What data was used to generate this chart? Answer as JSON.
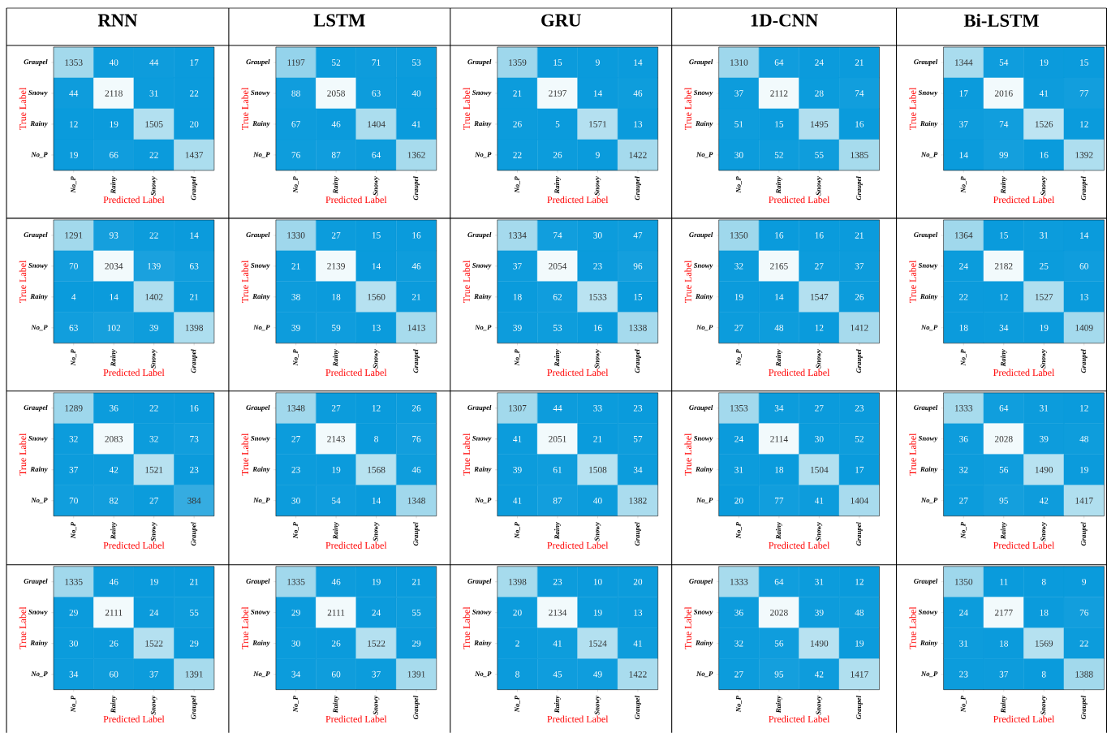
{
  "chart_data": [
    {
      "type": "heatmap",
      "title": "RNN",
      "xlabel": "Predicted Label",
      "ylabel": "True Label",
      "categories": [
        "No_P",
        "Rainy",
        "Snowy",
        "Graupel"
      ],
      "y_categories": [
        "Graupel",
        "Snowy",
        "Rainy",
        "No_P"
      ],
      "data_labels": true,
      "cells": [
        [
          1353,
          40,
          44,
          17
        ],
        [
          44,
          2118,
          31,
          22
        ],
        [
          12,
          19,
          1505,
          20
        ],
        [
          19,
          66,
          22,
          1437
        ]
      ]
    },
    {
      "type": "heatmap",
      "title": "LSTM",
      "xlabel": "Predicted Label",
      "ylabel": "True Label",
      "categories": [
        "No_P",
        "Rainy",
        "Snowy",
        "Graupel"
      ],
      "y_categories": [
        "Graupel",
        "Snowy",
        "Rainy",
        "No_P"
      ],
      "data_labels": true,
      "cells": [
        [
          1197,
          52,
          71,
          53
        ],
        [
          88,
          2058,
          63,
          40
        ],
        [
          67,
          46,
          1404,
          41
        ],
        [
          76,
          87,
          64,
          1362
        ]
      ]
    },
    {
      "type": "heatmap",
      "title": "GRU",
      "xlabel": "Predicted Label",
      "ylabel": "True Label",
      "categories": [
        "No_P",
        "Rainy",
        "Snowy",
        "Graupel"
      ],
      "y_categories": [
        "Graupel",
        "Snowy",
        "Rainy",
        "No_P"
      ],
      "data_labels": true,
      "cells": [
        [
          1359,
          15,
          9,
          14
        ],
        [
          21,
          2197,
          14,
          46
        ],
        [
          26,
          5,
          1571,
          13
        ],
        [
          22,
          26,
          9,
          1422
        ]
      ]
    },
    {
      "type": "heatmap",
      "title": "1D-CNN",
      "xlabel": "Predicted Label",
      "ylabel": "True Label",
      "categories": [
        "No_P",
        "Rainy",
        "Snowy",
        "Graupel"
      ],
      "y_categories": [
        "Graupel",
        "Snowy",
        "Rainy",
        "No_P"
      ],
      "data_labels": true,
      "cells": [
        [
          1310,
          64,
          24,
          21
        ],
        [
          37,
          2112,
          28,
          74
        ],
        [
          51,
          15,
          1495,
          16
        ],
        [
          30,
          52,
          55,
          1385
        ]
      ]
    },
    {
      "type": "heatmap",
      "title": "Bi-LSTM",
      "xlabel": "Predicted Label",
      "ylabel": "True Label",
      "categories": [
        "No_P",
        "Rainy",
        "Snowy",
        "Graupel"
      ],
      "y_categories": [
        "Graupel",
        "Snowy",
        "Rainy",
        "No_P"
      ],
      "data_labels": true,
      "cells": [
        [
          1344,
          54,
          19,
          15
        ],
        [
          17,
          2016,
          41,
          77
        ],
        [
          37,
          74,
          1526,
          12
        ],
        [
          14,
          99,
          16,
          1392
        ]
      ]
    },
    {
      "type": "heatmap",
      "xlabel": "Predicted Label",
      "ylabel": "True Label",
      "categories": [
        "No_P",
        "Rainy",
        "Snowy",
        "Graupel"
      ],
      "y_categories": [
        "Graupel",
        "Snowy",
        "Rainy",
        "No_P"
      ],
      "data_labels": true,
      "cells": [
        [
          1291,
          93,
          22,
          14
        ],
        [
          70,
          2034,
          139,
          63
        ],
        [
          4,
          14,
          1402,
          21
        ],
        [
          63,
          102,
          39,
          1398
        ]
      ]
    },
    {
      "type": "heatmap",
      "xlabel": "Predicted Label",
      "ylabel": "True Label",
      "categories": [
        "No_P",
        "Rainy",
        "Snowy",
        "Graupel"
      ],
      "y_categories": [
        "Graupel",
        "Snowy",
        "Rainy",
        "No_P"
      ],
      "data_labels": true,
      "cells": [
        [
          1330,
          27,
          15,
          16
        ],
        [
          21,
          2139,
          14,
          46
        ],
        [
          38,
          18,
          1560,
          21
        ],
        [
          39,
          59,
          13,
          1413
        ]
      ]
    },
    {
      "type": "heatmap",
      "xlabel": "Predicted Label",
      "ylabel": "True Label",
      "categories": [
        "No_P",
        "Rainy",
        "Snowy",
        "Graupel"
      ],
      "y_categories": [
        "Graupel",
        "Snowy",
        "Rainy",
        "No_P"
      ],
      "data_labels": true,
      "cells": [
        [
          1334,
          74,
          30,
          47
        ],
        [
          37,
          2054,
          23,
          96
        ],
        [
          18,
          62,
          1533,
          15
        ],
        [
          39,
          53,
          16,
          1338
        ]
      ]
    },
    {
      "type": "heatmap",
      "xlabel": "Predicted Label",
      "ylabel": "True Label",
      "categories": [
        "No_P",
        "Rainy",
        "Snowy",
        "Graupel"
      ],
      "y_categories": [
        "Graupel",
        "Snowy",
        "Rainy",
        "No_P"
      ],
      "data_labels": true,
      "cells": [
        [
          1350,
          16,
          16,
          21
        ],
        [
          32,
          2165,
          27,
          37
        ],
        [
          19,
          14,
          1547,
          26
        ],
        [
          27,
          48,
          12,
          1412
        ]
      ]
    },
    {
      "type": "heatmap",
      "xlabel": "Predicted Label",
      "ylabel": "True Label",
      "categories": [
        "No_P",
        "Rainy",
        "Snowy",
        "Graupel"
      ],
      "y_categories": [
        "Graupel",
        "Snowy",
        "Rainy",
        "No_P"
      ],
      "data_labels": true,
      "cells": [
        [
          1364,
          15,
          31,
          14
        ],
        [
          24,
          2182,
          25,
          60
        ],
        [
          22,
          12,
          1527,
          13
        ],
        [
          18,
          34,
          19,
          1409
        ]
      ]
    },
    {
      "type": "heatmap",
      "xlabel": "Predicted Label",
      "ylabel": "True Label",
      "categories": [
        "No_P",
        "Rainy",
        "Snowy",
        "Graupel"
      ],
      "y_categories": [
        "Graupel",
        "Snowy",
        "Rainy",
        "No_P"
      ],
      "data_labels": true,
      "cells": [
        [
          1289,
          36,
          22,
          16
        ],
        [
          32,
          2083,
          32,
          73
        ],
        [
          37,
          42,
          1521,
          23
        ],
        [
          70,
          82,
          27,
          384
        ]
      ]
    },
    {
      "type": "heatmap",
      "xlabel": "Predicted Label",
      "ylabel": "True Label",
      "categories": [
        "No_P",
        "Rainy",
        "Snowy",
        "Graupel"
      ],
      "y_categories": [
        "Graupel",
        "Snowy",
        "Rainy",
        "No_P"
      ],
      "data_labels": true,
      "cells": [
        [
          1348,
          27,
          12,
          26
        ],
        [
          27,
          2143,
          8,
          76
        ],
        [
          23,
          19,
          1568,
          46
        ],
        [
          30,
          54,
          14,
          1348
        ]
      ]
    },
    {
      "type": "heatmap",
      "xlabel": "Predicted Label",
      "ylabel": "True Label",
      "categories": [
        "No_P",
        "Rainy",
        "Snowy",
        "Graupel"
      ],
      "y_categories": [
        "Graupel",
        "Snowy",
        "Rainy",
        "No_P"
      ],
      "data_labels": true,
      "cells": [
        [
          1307,
          44,
          33,
          23
        ],
        [
          41,
          2051,
          21,
          57
        ],
        [
          39,
          61,
          1508,
          34
        ],
        [
          41,
          87,
          40,
          1382
        ]
      ]
    },
    {
      "type": "heatmap",
      "xlabel": "Predicted Label",
      "ylabel": "True Label",
      "categories": [
        "No_P",
        "Rainy",
        "Snowy",
        "Graupel"
      ],
      "y_categories": [
        "Graupel",
        "Snowy",
        "Rainy",
        "No_P"
      ],
      "data_labels": true,
      "cells": [
        [
          1353,
          34,
          27,
          23
        ],
        [
          24,
          2114,
          30,
          52
        ],
        [
          31,
          18,
          1504,
          17
        ],
        [
          20,
          77,
          41,
          1404
        ]
      ]
    },
    {
      "type": "heatmap",
      "xlabel": "Predicted Label",
      "ylabel": "True Label",
      "categories": [
        "No_P",
        "Rainy",
        "Snowy",
        "Graupel"
      ],
      "y_categories": [
        "Graupel",
        "Snowy",
        "Rainy",
        "No_P"
      ],
      "data_labels": true,
      "cells": [
        [
          1333,
          64,
          31,
          12
        ],
        [
          36,
          2028,
          39,
          48
        ],
        [
          32,
          56,
          1490,
          19
        ],
        [
          27,
          95,
          42,
          1417
        ]
      ]
    },
    {
      "type": "heatmap",
      "xlabel": "Predicted Label",
      "ylabel": "True Label",
      "categories": [
        "No_P",
        "Rainy",
        "Snowy",
        "Graupel"
      ],
      "y_categories": [
        "Graupel",
        "Snowy",
        "Rainy",
        "No_P"
      ],
      "data_labels": true,
      "cells": [
        [
          1335,
          46,
          19,
          21
        ],
        [
          29,
          2111,
          24,
          55
        ],
        [
          30,
          26,
          1522,
          29
        ],
        [
          34,
          60,
          37,
          1391
        ]
      ]
    },
    {
      "type": "heatmap",
      "xlabel": "Predicted Label",
      "ylabel": "True Label",
      "categories": [
        "No_P",
        "Rainy",
        "Snowy",
        "Graupel"
      ],
      "y_categories": [
        "Graupel",
        "Snowy",
        "Rainy",
        "No_P"
      ],
      "data_labels": true,
      "cells": [
        [
          1335,
          46,
          19,
          21
        ],
        [
          29,
          2111,
          24,
          55
        ],
        [
          30,
          26,
          1522,
          29
        ],
        [
          34,
          60,
          37,
          1391
        ]
      ]
    },
    {
      "type": "heatmap",
      "xlabel": "Predicted Label",
      "ylabel": "True Label",
      "categories": [
        "No_P",
        "Rainy",
        "Snowy",
        "Graupel"
      ],
      "y_categories": [
        "Graupel",
        "Snowy",
        "Rainy",
        "No_P"
      ],
      "data_labels": true,
      "cells": [
        [
          1398,
          23,
          10,
          20
        ],
        [
          20,
          2134,
          19,
          13
        ],
        [
          2,
          41,
          1524,
          41
        ],
        [
          8,
          45,
          49,
          1422
        ]
      ]
    },
    {
      "type": "heatmap",
      "xlabel": "Predicted Label",
      "ylabel": "True Label",
      "categories": [
        "No_P",
        "Rainy",
        "Snowy",
        "Graupel"
      ],
      "y_categories": [
        "Graupel",
        "Snowy",
        "Rainy",
        "No_P"
      ],
      "data_labels": true,
      "cells": [
        [
          1333,
          64,
          31,
          12
        ],
        [
          36,
          2028,
          39,
          48
        ],
        [
          32,
          56,
          1490,
          19
        ],
        [
          27,
          95,
          42,
          1417
        ]
      ]
    },
    {
      "type": "heatmap",
      "xlabel": "Predicted Label",
      "ylabel": "True Label",
      "categories": [
        "No_P",
        "Rainy",
        "Snowy",
        "Graupel"
      ],
      "y_categories": [
        "Graupel",
        "Snowy",
        "Rainy",
        "No_P"
      ],
      "data_labels": true,
      "cells": [
        [
          1350,
          11,
          8,
          9
        ],
        [
          24,
          2177,
          18,
          76
        ],
        [
          31,
          18,
          1569,
          22
        ],
        [
          23,
          37,
          8,
          1388
        ]
      ]
    }
  ]
}
